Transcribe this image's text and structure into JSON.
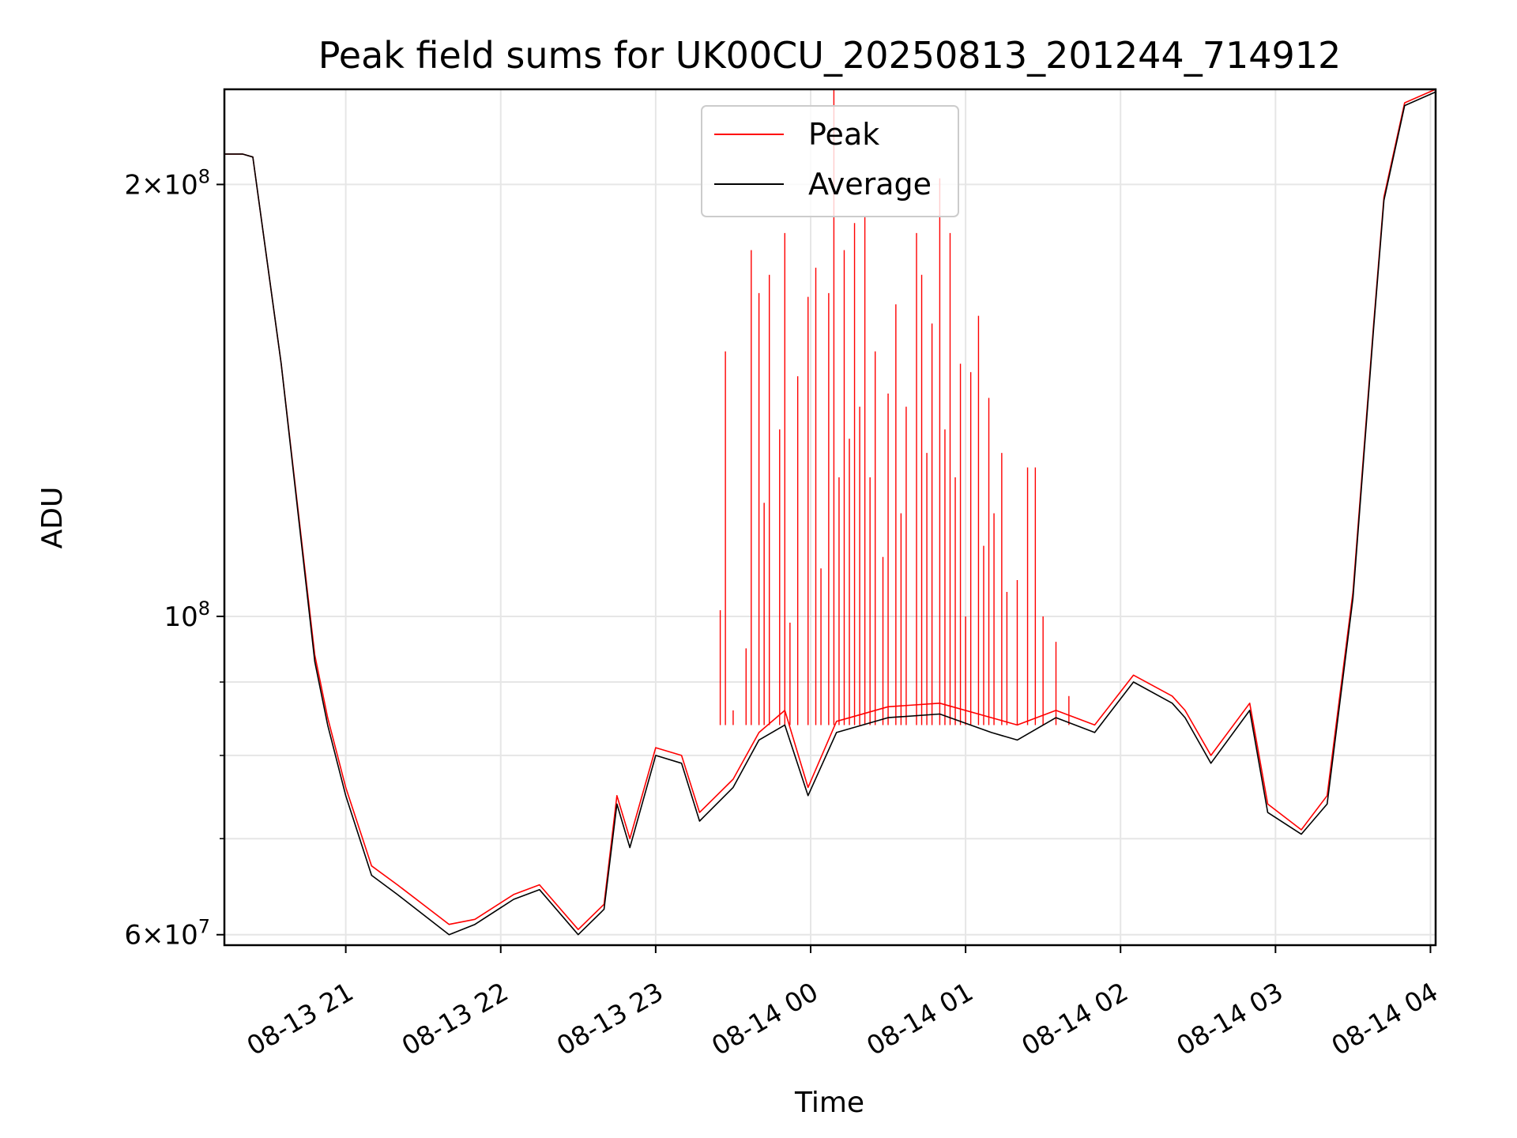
{
  "chart_data": {
    "type": "line",
    "title": "Peak field sums for UK00CU_20250813_201244_714912",
    "xlabel": "Time",
    "ylabel": "ADU",
    "yscale": "log",
    "ylim": [
      59000000,
      233000000
    ],
    "xlim": [
      "2025-08-13T20:13",
      "2025-08-14T04:02"
    ],
    "grid": true,
    "legend_position": "top-center",
    "x_ticks": [
      {
        "value": "2025-08-13T21:00",
        "label": "08-13 21"
      },
      {
        "value": "2025-08-13T22:00",
        "label": "08-13 22"
      },
      {
        "value": "2025-08-13T23:00",
        "label": "08-13 23"
      },
      {
        "value": "2025-08-14T00:00",
        "label": "08-14 00"
      },
      {
        "value": "2025-08-14T01:00",
        "label": "08-14 01"
      },
      {
        "value": "2025-08-14T02:00",
        "label": "08-14 02"
      },
      {
        "value": "2025-08-14T03:00",
        "label": "08-14 03"
      },
      {
        "value": "2025-08-14T04:00",
        "label": "08-14 04"
      }
    ],
    "y_ticks": [
      {
        "value": 60000000,
        "mantissa": "6",
        "exponent": "7"
      },
      {
        "value": 100000000,
        "mantissa": "",
        "exponent": "8"
      },
      {
        "value": 200000000,
        "mantissa": "2",
        "exponent": "8"
      }
    ],
    "y_minor_ticks": [
      70000000,
      80000000,
      90000000
    ],
    "series": [
      {
        "name": "Peak",
        "color": "#ff0000",
        "x": [
          "2025-08-13T20:13",
          "2025-08-13T20:20",
          "2025-08-13T20:24",
          "2025-08-13T20:35",
          "2025-08-13T20:48",
          "2025-08-13T20:53",
          "2025-08-13T21:00",
          "2025-08-13T21:10",
          "2025-08-13T21:20",
          "2025-08-13T21:40",
          "2025-08-13T21:50",
          "2025-08-13T22:05",
          "2025-08-13T22:15",
          "2025-08-13T22:30",
          "2025-08-13T22:40",
          "2025-08-13T22:45",
          "2025-08-13T22:50",
          "2025-08-13T23:00",
          "2025-08-13T23:10",
          "2025-08-13T23:17",
          "2025-08-13T23:30",
          "2025-08-13T23:40",
          "2025-08-13T23:50",
          "2025-08-13T23:59",
          "2025-08-14T00:10",
          "2025-08-14T00:30",
          "2025-08-14T00:50",
          "2025-08-14T01:10",
          "2025-08-14T01:20",
          "2025-08-14T01:35",
          "2025-08-14T01:50",
          "2025-08-14T02:05",
          "2025-08-14T02:20",
          "2025-08-14T02:25",
          "2025-08-14T02:35",
          "2025-08-14T02:50",
          "2025-08-14T02:57",
          "2025-08-14T03:10",
          "2025-08-14T03:20",
          "2025-08-14T03:30",
          "2025-08-14T03:38",
          "2025-08-14T03:42",
          "2025-08-14T03:50",
          "2025-08-14T04:02"
        ],
        "values": [
          210000000,
          210000000,
          209000000,
          150000000,
          94000000,
          85000000,
          76000000,
          67000000,
          65000000,
          61000000,
          61500000,
          64000000,
          65000000,
          60500000,
          63000000,
          75000000,
          70000000,
          81000000,
          80000000,
          73000000,
          77000000,
          83000000,
          86000000,
          76000000,
          84500000,
          86500000,
          87000000,
          85000000,
          84000000,
          86000000,
          84000000,
          91000000,
          88000000,
          86000000,
          80000000,
          87000000,
          74000000,
          71000000,
          75000000,
          104000000,
          160000000,
          196000000,
          228000000,
          233000000
        ],
        "spikes": [
          {
            "x": "2025-08-13T23:25",
            "y": 101000000
          },
          {
            "x": "2025-08-13T23:27",
            "y": 153000000
          },
          {
            "x": "2025-08-13T23:30",
            "y": 86000000
          },
          {
            "x": "2025-08-13T23:35",
            "y": 95000000
          },
          {
            "x": "2025-08-13T23:37",
            "y": 180000000
          },
          {
            "x": "2025-08-13T23:40",
            "y": 168000000
          },
          {
            "x": "2025-08-13T23:42",
            "y": 120000000
          },
          {
            "x": "2025-08-13T23:44",
            "y": 173000000
          },
          {
            "x": "2025-08-13T23:48",
            "y": 135000000
          },
          {
            "x": "2025-08-13T23:50",
            "y": 185000000
          },
          {
            "x": "2025-08-13T23:52",
            "y": 99000000
          },
          {
            "x": "2025-08-13T23:55",
            "y": 147000000
          },
          {
            "x": "2025-08-13T23:59",
            "y": 167000000
          },
          {
            "x": "2025-08-14T00:02",
            "y": 175000000
          },
          {
            "x": "2025-08-14T00:04",
            "y": 108000000
          },
          {
            "x": "2025-08-14T00:07",
            "y": 168000000
          },
          {
            "x": "2025-08-14T00:09",
            "y": 233000000
          },
          {
            "x": "2025-08-14T00:11",
            "y": 125000000
          },
          {
            "x": "2025-08-14T00:13",
            "y": 180000000
          },
          {
            "x": "2025-08-14T00:15",
            "y": 133000000
          },
          {
            "x": "2025-08-14T00:17",
            "y": 188000000
          },
          {
            "x": "2025-08-14T00:19",
            "y": 140000000
          },
          {
            "x": "2025-08-14T00:21",
            "y": 190000000
          },
          {
            "x": "2025-08-14T00:23",
            "y": 125000000
          },
          {
            "x": "2025-08-14T00:25",
            "y": 153000000
          },
          {
            "x": "2025-08-14T00:28",
            "y": 110000000
          },
          {
            "x": "2025-08-14T00:30",
            "y": 143000000
          },
          {
            "x": "2025-08-14T00:33",
            "y": 165000000
          },
          {
            "x": "2025-08-14T00:35",
            "y": 118000000
          },
          {
            "x": "2025-08-14T00:37",
            "y": 140000000
          },
          {
            "x": "2025-08-14T00:41",
            "y": 185000000
          },
          {
            "x": "2025-08-14T00:43",
            "y": 173000000
          },
          {
            "x": "2025-08-14T00:45",
            "y": 130000000
          },
          {
            "x": "2025-08-14T00:47",
            "y": 160000000
          },
          {
            "x": "2025-08-14T00:50",
            "y": 202000000
          },
          {
            "x": "2025-08-14T00:52",
            "y": 135000000
          },
          {
            "x": "2025-08-14T00:54",
            "y": 185000000
          },
          {
            "x": "2025-08-14T00:56",
            "y": 125000000
          },
          {
            "x": "2025-08-14T00:58",
            "y": 150000000
          },
          {
            "x": "2025-08-14T01:00",
            "y": 100000000
          },
          {
            "x": "2025-08-14T01:02",
            "y": 148000000
          },
          {
            "x": "2025-08-14T01:05",
            "y": 162000000
          },
          {
            "x": "2025-08-14T01:07",
            "y": 112000000
          },
          {
            "x": "2025-08-14T01:09",
            "y": 142000000
          },
          {
            "x": "2025-08-14T01:11",
            "y": 118000000
          },
          {
            "x": "2025-08-14T01:14",
            "y": 130000000
          },
          {
            "x": "2025-08-14T01:16",
            "y": 104000000
          },
          {
            "x": "2025-08-14T01:20",
            "y": 106000000
          },
          {
            "x": "2025-08-14T01:24",
            "y": 127000000
          },
          {
            "x": "2025-08-14T01:27",
            "y": 127000000
          },
          {
            "x": "2025-08-14T01:30",
            "y": 100000000
          },
          {
            "x": "2025-08-14T01:35",
            "y": 96000000
          },
          {
            "x": "2025-08-14T01:40",
            "y": 88000000
          }
        ]
      },
      {
        "name": "Average",
        "color": "#000000",
        "x": [
          "2025-08-13T20:13",
          "2025-08-13T20:20",
          "2025-08-13T20:24",
          "2025-08-13T20:35",
          "2025-08-13T20:48",
          "2025-08-13T20:53",
          "2025-08-13T21:00",
          "2025-08-13T21:10",
          "2025-08-13T21:20",
          "2025-08-13T21:40",
          "2025-08-13T21:50",
          "2025-08-13T22:05",
          "2025-08-13T22:15",
          "2025-08-13T22:30",
          "2025-08-13T22:40",
          "2025-08-13T22:45",
          "2025-08-13T22:50",
          "2025-08-13T23:00",
          "2025-08-13T23:10",
          "2025-08-13T23:17",
          "2025-08-13T23:30",
          "2025-08-13T23:40",
          "2025-08-13T23:50",
          "2025-08-13T23:59",
          "2025-08-14T00:10",
          "2025-08-14T00:30",
          "2025-08-14T00:50",
          "2025-08-14T01:10",
          "2025-08-14T01:20",
          "2025-08-14T01:35",
          "2025-08-14T01:50",
          "2025-08-14T02:05",
          "2025-08-14T02:20",
          "2025-08-14T02:25",
          "2025-08-14T02:35",
          "2025-08-14T02:50",
          "2025-08-14T02:57",
          "2025-08-14T03:10",
          "2025-08-14T03:20",
          "2025-08-14T03:30",
          "2025-08-14T03:38",
          "2025-08-14T03:42",
          "2025-08-14T03:50",
          "2025-08-14T04:02"
        ],
        "values": [
          210000000,
          210000000,
          209000000,
          150000000,
          93000000,
          84000000,
          75000000,
          66000000,
          64000000,
          60000000,
          61000000,
          63500000,
          64500000,
          60000000,
          62500000,
          74000000,
          69000000,
          80000000,
          79000000,
          72000000,
          76000000,
          82000000,
          84000000,
          75000000,
          83000000,
          85000000,
          85500000,
          83000000,
          82000000,
          85000000,
          83000000,
          90000000,
          87000000,
          85000000,
          79000000,
          86000000,
          73000000,
          70500000,
          74000000,
          103000000,
          159000000,
          195000000,
          227000000,
          232000000
        ]
      }
    ]
  }
}
